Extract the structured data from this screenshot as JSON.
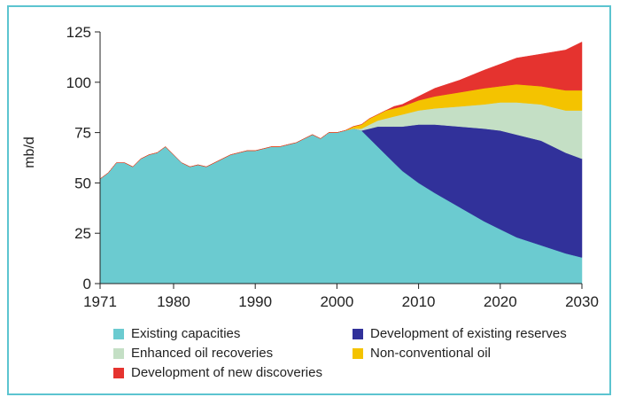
{
  "chart_data": {
    "type": "area",
    "title": "",
    "xlabel": "",
    "ylabel": "mb/d",
    "xlim": [
      1971,
      2030
    ],
    "ylim": [
      0,
      125
    ],
    "x_ticks": [
      1971,
      1980,
      1990,
      2000,
      2010,
      2020,
      2030
    ],
    "y_ticks": [
      0,
      25,
      50,
      75,
      100,
      125
    ],
    "x": [
      1971,
      1972,
      1973,
      1974,
      1975,
      1976,
      1977,
      1978,
      1979,
      1980,
      1981,
      1982,
      1983,
      1984,
      1985,
      1986,
      1987,
      1988,
      1989,
      1990,
      1991,
      1992,
      1993,
      1994,
      1995,
      1996,
      1997,
      1998,
      1999,
      2000,
      2001,
      2002,
      2003,
      2004,
      2005,
      2006,
      2007,
      2008,
      2010,
      2012,
      2015,
      2018,
      2020,
      2022,
      2025,
      2028,
      2030
    ],
    "series": [
      {
        "name": "Existing capacities",
        "color": "#6bcbd0",
        "values": [
          52,
          55,
          60,
          60,
          58,
          62,
          64,
          65,
          68,
          64,
          60,
          58,
          59,
          58,
          60,
          62,
          64,
          65,
          66,
          66,
          67,
          68,
          68,
          69,
          70,
          72,
          74,
          72,
          75,
          75,
          76,
          77,
          76,
          72,
          68,
          64,
          60,
          56,
          50,
          45,
          38,
          31,
          27,
          23,
          19,
          15,
          13
        ]
      },
      {
        "name": "Development of existing reserves",
        "color": "#31319a",
        "values": [
          0,
          0,
          0,
          0,
          0,
          0,
          0,
          0,
          0,
          0,
          0,
          0,
          0,
          0,
          0,
          0,
          0,
          0,
          0,
          0,
          0,
          0,
          0,
          0,
          0,
          0,
          0,
          0,
          0,
          0,
          0,
          0,
          0,
          5,
          10,
          14,
          18,
          22,
          29,
          34,
          40,
          46,
          49,
          51,
          52,
          50,
          49
        ]
      },
      {
        "name": "Enhanced oil recoveries",
        "color": "#c4dfc5",
        "values": [
          0,
          0,
          0,
          0,
          0,
          0,
          0,
          0,
          0,
          0,
          0,
          0,
          0,
          0,
          0,
          0,
          0,
          0,
          0,
          0,
          0,
          0,
          0,
          0,
          0,
          0,
          0,
          0,
          0,
          0,
          0,
          0,
          1,
          2,
          3,
          4,
          5,
          6,
          7,
          8,
          10,
          12,
          14,
          16,
          18,
          21,
          24
        ]
      },
      {
        "name": "Non-conventional oil",
        "color": "#f4c300",
        "values": [
          0,
          0,
          0,
          0,
          0,
          0,
          0,
          0,
          0,
          0,
          0,
          0,
          0,
          0,
          0,
          0,
          0,
          0,
          0,
          0,
          0,
          0,
          0,
          0,
          0,
          0,
          0,
          0,
          0,
          0,
          0,
          1,
          2,
          3,
          3,
          4,
          4,
          4,
          5,
          6,
          7,
          8,
          8,
          9,
          9,
          10,
          10
        ]
      },
      {
        "name": "Development of new discoveries",
        "color": "#e5332f",
        "values": [
          0,
          0,
          0,
          0,
          0,
          0,
          0,
          0,
          0,
          0,
          0,
          0,
          0,
          0,
          0,
          0,
          0,
          0,
          0,
          0,
          0,
          0,
          0,
          0,
          0,
          0,
          0,
          0,
          0,
          0,
          0,
          0,
          0,
          0,
          0,
          0,
          1,
          1,
          2,
          4,
          6,
          9,
          11,
          13,
          16,
          20,
          24
        ]
      }
    ]
  },
  "legend": {
    "items": [
      {
        "label": "Existing capacities",
        "color": "#6bcbd0"
      },
      {
        "label": "Development of existing reserves",
        "color": "#31319a"
      },
      {
        "label": "Enhanced oil recoveries",
        "color": "#c4dfc5"
      },
      {
        "label": "Non-conventional oil",
        "color": "#f4c300"
      },
      {
        "label": "Development of new discoveries",
        "color": "#e5332f"
      }
    ]
  }
}
